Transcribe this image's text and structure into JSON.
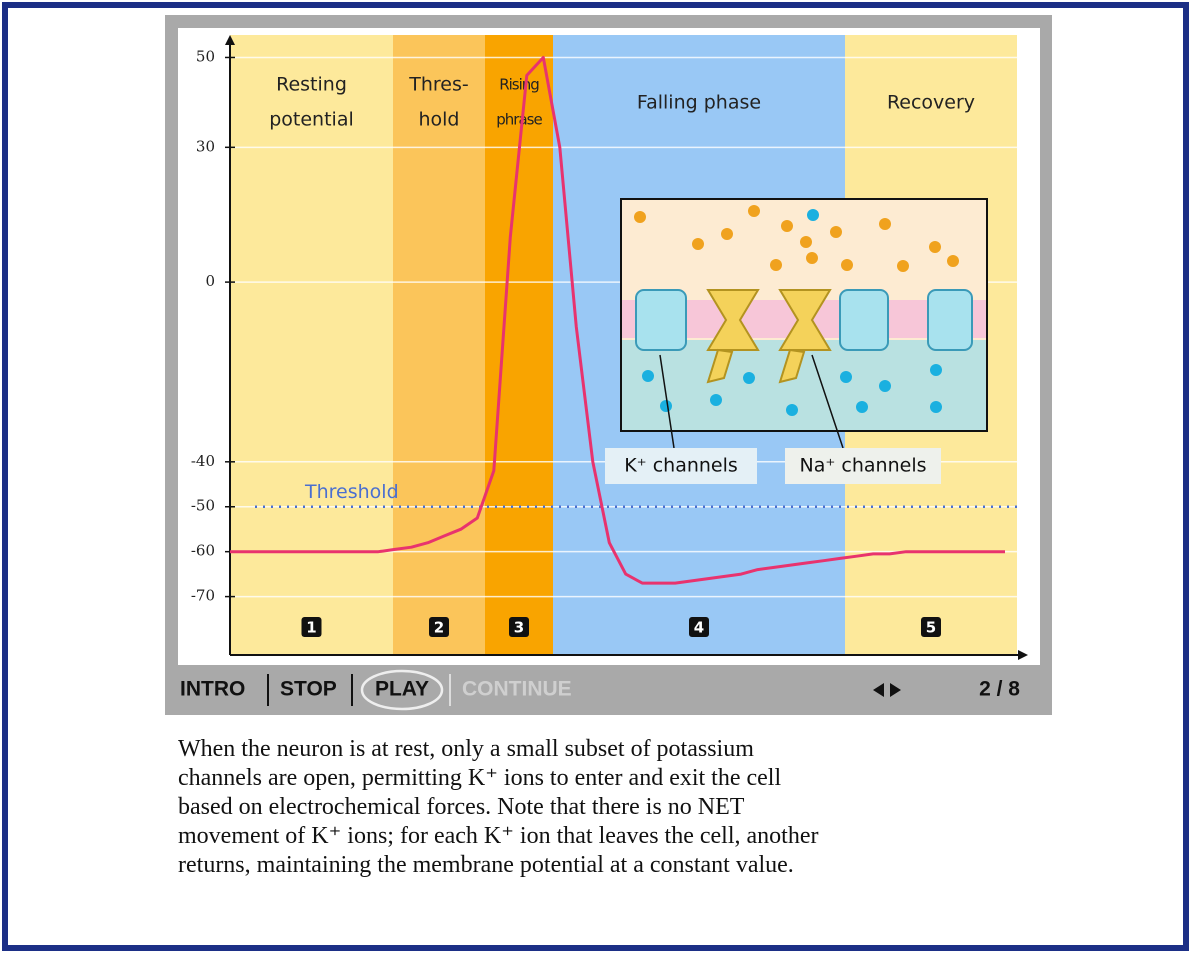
{
  "chart_data": {
    "type": "line",
    "categories": [
      null,
      null,
      null,
      null,
      null,
      null,
      null,
      null,
      null,
      null,
      null,
      null,
      null,
      null,
      null,
      null,
      null,
      null,
      null,
      null,
      null,
      null,
      null,
      null,
      null,
      null,
      null,
      null,
      null,
      null,
      null,
      null,
      null,
      null,
      null,
      null,
      null,
      null,
      null,
      null,
      null,
      null,
      null,
      null,
      null,
      null,
      null,
      null
    ],
    "values": [
      -60,
      -60,
      -60,
      -60,
      -60,
      -60,
      -60,
      -60,
      -60,
      -60,
      -59.5,
      -59,
      -58,
      -56.5,
      -55,
      -52.5,
      -42,
      10,
      46,
      50,
      30,
      -10,
      -40,
      -58,
      -65,
      -67,
      -67,
      -67,
      -66.5,
      -66,
      -65.5,
      -65,
      -64,
      -63.5,
      -63,
      -62.5,
      -62,
      -61.5,
      -61,
      -60.5,
      -60.5,
      -60,
      -60,
      -60,
      -60,
      -60,
      -60,
      -60
    ],
    "color": "#e8336e",
    "ylim": [
      -83,
      55
    ],
    "yticks": [
      50,
      30,
      0,
      -40,
      -50,
      -60,
      -70
    ],
    "grid": true,
    "threshold": {
      "value": -50,
      "label": "Threshold",
      "color": "#4a6fd0"
    },
    "phases": [
      {
        "label": [
          "Resting",
          "potential"
        ],
        "number": "1",
        "color": "#fde99b"
      },
      {
        "label": [
          "Thres-",
          "hold"
        ],
        "number": "2",
        "color": "#fbc55a"
      },
      {
        "label": [
          "Rising",
          "phrase"
        ],
        "number": "3",
        "color": "#f9a400"
      },
      {
        "label": [
          "Falling phase"
        ],
        "number": "4",
        "color": "#99c8f5"
      },
      {
        "label": [
          "Recovery"
        ],
        "number": "5",
        "color": "#fde99b"
      }
    ]
  },
  "inset": {
    "labels": [
      "K⁺ channels",
      "Na⁺ channels"
    ]
  },
  "controls": {
    "buttons": [
      "INTRO",
      "STOP",
      "PLAY",
      "CONTINUE"
    ],
    "page": "2 / 8"
  },
  "caption": [
    "When the neuron is at rest, only a small subset of potassium",
    "channels are open,  permitting  K⁺ ions to enter and exit the cell",
    "based on electrochemical forces. Note that there is no NET",
    "movement of K⁺ ions; for each K⁺ ion that leaves the cell, another",
    "returns, maintaining the membrane potential at a constant value."
  ]
}
